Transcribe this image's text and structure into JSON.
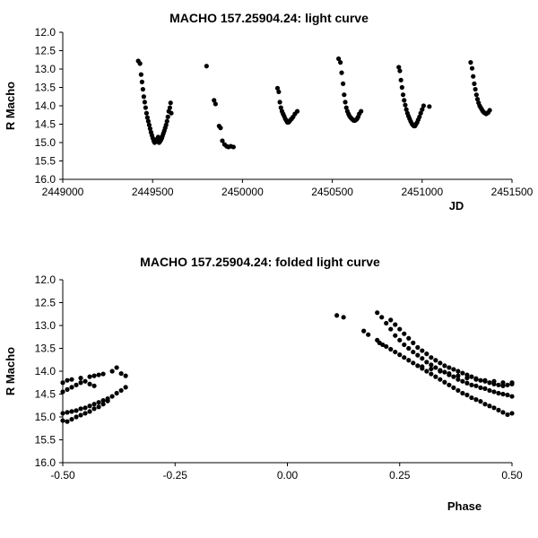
{
  "chart_data": [
    {
      "type": "scatter",
      "title": "MACHO 157.25904.24: light curve",
      "xlabel": "JD",
      "ylabel": "R Macho",
      "xlim": [
        2449000,
        2451500
      ],
      "ylim": [
        12.0,
        16.0
      ],
      "y_inverted": true,
      "xticks": [
        2449000,
        2449500,
        2450000,
        2450500,
        2451000,
        2451500
      ],
      "yticks": [
        12.0,
        12.5,
        13.0,
        13.5,
        14.0,
        14.5,
        15.0,
        15.5,
        16.0
      ],
      "xtick_labels": [
        "2449000",
        "2449500",
        "2450000",
        "2450500",
        "2451000",
        "2451500"
      ],
      "ytick_labels": [
        "12.0",
        "12.5",
        "13.0",
        "13.5",
        "14.0",
        "14.5",
        "15.0",
        "15.5",
        "16.0"
      ],
      "grid": false,
      "marker_color": "#000000",
      "series": [
        {
          "x": [
            2449420,
            2449430,
            2449436,
            2449441,
            2449446,
            2449451,
            2449456,
            2449461,
            2449466,
            2449471,
            2449476,
            2449481,
            2449486,
            2449491,
            2449496,
            2449501,
            2449506,
            2449511,
            2449516,
            2449521,
            2449526,
            2449531,
            2449536,
            2449541,
            2449546,
            2449551,
            2449555,
            2449560,
            2449565,
            2449570,
            2449575,
            2449580,
            2449585,
            2449590,
            2449596,
            2449600,
            2449604,
            2449800,
            2449842,
            2449850,
            2449870,
            2449878,
            2449888,
            2449900,
            2449912,
            2449922,
            2449935,
            2449950,
            2450195,
            2450202,
            2450208,
            2450214,
            2450220,
            2450226,
            2450232,
            2450238,
            2450244,
            2450250,
            2450256,
            2450262,
            2450268,
            2450274,
            2450282,
            2450292,
            2450305,
            2450535,
            2450545,
            2450552,
            2450560,
            2450566,
            2450572,
            2450578,
            2450584,
            2450590,
            2450596,
            2450602,
            2450608,
            2450614,
            2450620,
            2450626,
            2450632,
            2450638,
            2450644,
            2450650,
            2450660,
            2450870,
            2450876,
            2450882,
            2450888,
            2450894,
            2450900,
            2450906,
            2450912,
            2450918,
            2450924,
            2450930,
            2450936,
            2450942,
            2450948,
            2450954,
            2450960,
            2450966,
            2450972,
            2450978,
            2450985,
            2450992,
            2451000,
            2451008,
            2451040,
            2451270,
            2451278,
            2451284,
            2451290,
            2451296,
            2451302,
            2451308,
            2451314,
            2451320,
            2451326,
            2451332,
            2451338,
            2451344,
            2451350,
            2451356,
            2451362,
            2451368,
            2451376
          ],
          "y": [
            12.78,
            12.85,
            13.15,
            13.35,
            13.55,
            13.75,
            13.9,
            14.05,
            14.2,
            14.32,
            14.42,
            14.52,
            14.62,
            14.72,
            14.8,
            14.88,
            14.95,
            15.0,
            14.98,
            14.95,
            14.9,
            14.85,
            15.0,
            14.97,
            14.93,
            14.88,
            14.82,
            14.75,
            14.68,
            14.6,
            14.52,
            14.42,
            14.3,
            14.15,
            14.05,
            13.92,
            14.2,
            12.92,
            13.85,
            13.95,
            14.55,
            14.6,
            14.95,
            15.05,
            15.1,
            15.12,
            15.1,
            15.12,
            13.52,
            13.62,
            13.9,
            14.05,
            14.15,
            14.22,
            14.28,
            14.35,
            14.4,
            14.45,
            14.45,
            14.42,
            14.38,
            14.35,
            14.3,
            14.22,
            14.15,
            12.72,
            12.82,
            13.1,
            13.4,
            13.7,
            13.9,
            14.05,
            14.15,
            14.22,
            14.28,
            14.32,
            14.35,
            14.38,
            14.4,
            14.4,
            14.38,
            14.35,
            14.3,
            14.22,
            14.15,
            12.95,
            13.05,
            13.3,
            13.5,
            13.7,
            13.85,
            13.98,
            14.1,
            14.2,
            14.28,
            14.35,
            14.42,
            14.48,
            14.52,
            14.55,
            14.55,
            14.5,
            14.45,
            14.38,
            14.3,
            14.2,
            14.1,
            14.0,
            14.02,
            12.82,
            12.98,
            13.2,
            13.4,
            13.55,
            13.7,
            13.82,
            13.92,
            14.0,
            14.05,
            14.1,
            14.15,
            14.18,
            14.2,
            14.22,
            14.2,
            14.18,
            14.12
          ]
        }
      ]
    },
    {
      "type": "scatter",
      "title": "MACHO 157.25904.24: folded light curve",
      "xlabel": "Phase",
      "ylabel": "R Macho",
      "xlim": [
        -0.5,
        0.5
      ],
      "ylim": [
        12.0,
        16.0
      ],
      "y_inverted": true,
      "xticks": [
        -0.5,
        -0.25,
        0.0,
        0.25,
        0.5
      ],
      "yticks": [
        12.0,
        12.5,
        13.0,
        13.5,
        14.0,
        14.5,
        15.0,
        15.5,
        16.0
      ],
      "xtick_labels": [
        "-0.50",
        "-0.25",
        "0.00",
        "0.25",
        "0.50"
      ],
      "ytick_labels": [
        "12.0",
        "12.5",
        "13.0",
        "13.5",
        "14.0",
        "14.5",
        "15.0",
        "15.5",
        "16.0"
      ],
      "grid": false,
      "marker_color": "#000000",
      "series": [
        {
          "x": [
            0.11,
            0.125,
            0.17,
            0.18,
            0.2,
            0.205,
            0.212,
            0.22,
            0.23,
            0.24,
            0.25,
            0.26,
            0.27,
            0.28,
            0.29,
            0.3,
            0.31,
            0.32,
            0.33,
            0.34,
            0.35,
            0.36,
            0.37,
            0.38,
            0.39,
            0.4,
            0.41,
            0.42,
            0.43,
            0.44,
            0.45,
            0.46,
            0.47,
            0.48,
            0.49,
            0.5,
            0.2,
            0.21,
            0.22,
            0.23,
            0.24,
            0.25,
            0.26,
            0.27,
            0.28,
            0.29,
            0.3,
            0.31,
            0.32,
            0.33,
            0.34,
            0.35,
            0.36,
            0.37,
            0.38,
            0.39,
            0.4,
            0.41,
            0.42,
            0.43,
            0.44,
            0.45,
            0.46,
            0.47,
            0.48,
            0.49,
            0.5,
            0.23,
            0.24,
            0.25,
            0.26,
            0.27,
            0.28,
            0.29,
            0.3,
            0.31,
            0.32,
            0.33,
            0.34,
            0.35,
            0.36,
            0.37,
            0.38,
            0.39,
            0.4,
            0.41,
            0.42,
            0.43,
            0.44,
            0.45,
            0.46,
            0.47,
            0.48,
            0.49,
            0.5,
            0.3,
            0.32,
            0.34,
            0.36,
            0.38,
            0.4,
            0.42,
            0.44,
            0.46,
            0.48,
            0.5,
            -0.5,
            -0.49,
            -0.48,
            -0.47,
            -0.46,
            -0.45,
            -0.44,
            -0.43,
            -0.42,
            -0.41,
            -0.4,
            -0.39,
            -0.38,
            -0.37,
            -0.36,
            -0.5,
            -0.49,
            -0.48,
            -0.47,
            -0.46,
            -0.45,
            -0.44,
            -0.43,
            -0.42,
            -0.41,
            -0.4,
            -0.5,
            -0.49,
            -0.48,
            -0.47,
            -0.46,
            -0.45,
            -0.44,
            -0.43,
            -0.5,
            -0.49,
            -0.48,
            -0.46,
            -0.44,
            -0.43,
            -0.42,
            -0.41,
            -0.39,
            -0.38,
            -0.37,
            -0.36
          ],
          "y": [
            12.78,
            12.82,
            13.12,
            13.2,
            13.32,
            13.38,
            13.42,
            13.46,
            13.52,
            13.58,
            13.64,
            13.7,
            13.76,
            13.82,
            13.88,
            13.94,
            14.0,
            14.06,
            14.12,
            14.18,
            14.24,
            14.3,
            14.36,
            14.42,
            14.48,
            14.52,
            14.58,
            14.62,
            14.66,
            14.72,
            14.76,
            14.8,
            14.85,
            14.9,
            14.95,
            14.92,
            12.72,
            12.82,
            12.95,
            13.08,
            13.22,
            13.32,
            13.42,
            13.5,
            13.58,
            13.65,
            13.72,
            13.8,
            13.86,
            13.92,
            13.98,
            14.02,
            14.08,
            14.12,
            14.18,
            14.22,
            14.26,
            14.3,
            14.32,
            14.36,
            14.38,
            14.42,
            14.45,
            14.48,
            14.5,
            14.52,
            14.55,
            12.88,
            12.98,
            13.08,
            13.18,
            13.28,
            13.38,
            13.48,
            13.55,
            13.62,
            13.7,
            13.76,
            13.82,
            13.88,
            13.92,
            13.96,
            14.0,
            14.04,
            14.08,
            14.12,
            14.16,
            14.2,
            14.22,
            14.25,
            14.28,
            14.3,
            14.32,
            14.3,
            14.25,
            13.9,
            13.95,
            14.0,
            14.05,
            14.1,
            14.15,
            14.18,
            14.2,
            14.22,
            14.25,
            14.28,
            14.92,
            14.9,
            14.88,
            14.86,
            14.82,
            14.8,
            14.76,
            14.72,
            14.68,
            14.64,
            14.6,
            14.55,
            14.48,
            14.42,
            14.35,
            15.08,
            15.1,
            15.05,
            15.0,
            14.96,
            14.92,
            14.88,
            14.82,
            14.78,
            14.72,
            14.65,
            14.45,
            14.4,
            14.35,
            14.3,
            14.25,
            14.22,
            14.28,
            14.32,
            14.25,
            14.2,
            14.18,
            14.15,
            14.12,
            14.1,
            14.08,
            14.06,
            14.0,
            13.92,
            14.05,
            14.1
          ]
        }
      ]
    }
  ]
}
